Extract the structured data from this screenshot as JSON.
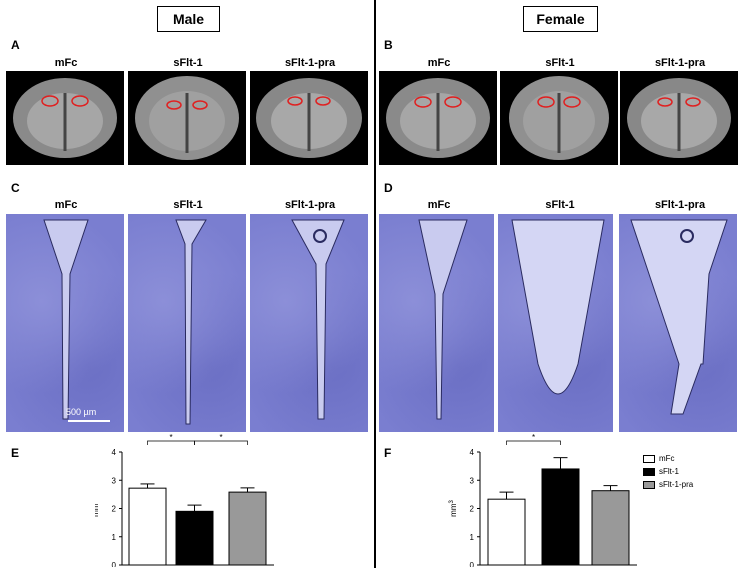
{
  "sections": {
    "male": "Male",
    "female": "Female"
  },
  "panel_labels": {
    "A": "A",
    "B": "B",
    "C": "C",
    "D": "D",
    "E": "E",
    "F": "F"
  },
  "groups": [
    "mFc",
    "sFlt-1",
    "sFlt-1-pra"
  ],
  "scale_bar": "500 µm",
  "significance": "*",
  "chart_data": [
    {
      "type": "bar",
      "panel": "E",
      "categories": [
        "mFc",
        "sFlt-1",
        "sFlt-1-pra"
      ],
      "values": [
        2.72,
        1.9,
        2.58
      ],
      "errors": [
        0.15,
        0.22,
        0.15
      ],
      "colors": [
        "#ffffff",
        "#000000",
        "#999999"
      ],
      "ylabel": "mm3",
      "ylim": [
        0,
        4
      ],
      "yticks": [
        "0",
        "1",
        "2",
        "3",
        "4"
      ],
      "significance": [
        "*",
        "*"
      ]
    },
    {
      "type": "bar",
      "panel": "F",
      "categories": [
        "mFc",
        "sFlt-1",
        "sFlt-1-pra"
      ],
      "values": [
        2.33,
        3.4,
        2.63
      ],
      "errors": [
        0.25,
        0.4,
        0.18
      ],
      "colors": [
        "#ffffff",
        "#000000",
        "#999999"
      ],
      "ylabel": "mm3",
      "ylim": [
        0,
        4
      ],
      "yticks": [
        "0",
        "1",
        "2",
        "3",
        "4"
      ],
      "significance": [
        "*"
      ]
    }
  ],
  "legend": [
    {
      "label": "mFc",
      "color": "#ffffff"
    },
    {
      "label": "sFlt-1",
      "color": "#000000"
    },
    {
      "label": "sFlt-1-pra",
      "color": "#999999"
    }
  ]
}
